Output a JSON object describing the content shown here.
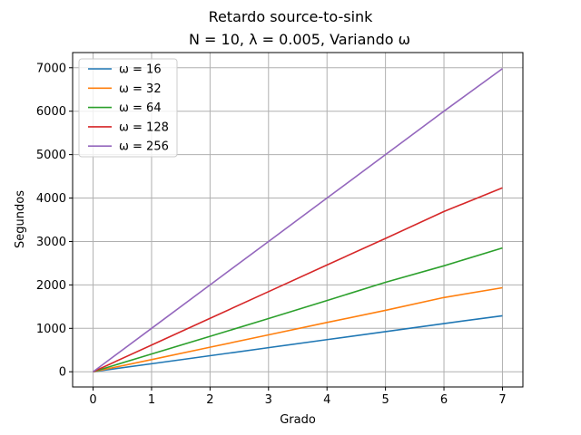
{
  "chart_data": {
    "type": "line",
    "title": "Retardo source-to-sink",
    "subtitle": "N = 10, λ = 0.005, Variando ω",
    "xlabel": "Grado",
    "ylabel": "Segundos",
    "xlim": [
      -0.35,
      7.35
    ],
    "ylim": [
      -350,
      7350
    ],
    "xticks": [
      0,
      1,
      2,
      3,
      4,
      5,
      6,
      7
    ],
    "yticks": [
      0,
      1000,
      2000,
      3000,
      4000,
      5000,
      6000,
      7000
    ],
    "grid": true,
    "legend_position": "top-left",
    "x": [
      0,
      1,
      2,
      3,
      4,
      5,
      6,
      7
    ],
    "series": [
      {
        "name": "ω = 16",
        "color": "#1f77b4",
        "values": [
          0,
          185,
          370,
          555,
          740,
          925,
          1110,
          1290
        ]
      },
      {
        "name": "ω = 32",
        "color": "#ff7f0e",
        "values": [
          0,
          280,
          565,
          850,
          1135,
          1415,
          1710,
          1935
        ]
      },
      {
        "name": "ω = 64",
        "color": "#2ca02c",
        "values": [
          0,
          410,
          815,
          1225,
          1640,
          2060,
          2440,
          2850
        ]
      },
      {
        "name": "ω = 128",
        "color": "#d62728",
        "values": [
          0,
          615,
          1230,
          1845,
          2460,
          3070,
          3690,
          4235
        ]
      },
      {
        "name": "ω = 256",
        "color": "#9467bd",
        "values": [
          0,
          1000,
          2000,
          3000,
          4000,
          5000,
          6000,
          6980
        ]
      }
    ]
  }
}
